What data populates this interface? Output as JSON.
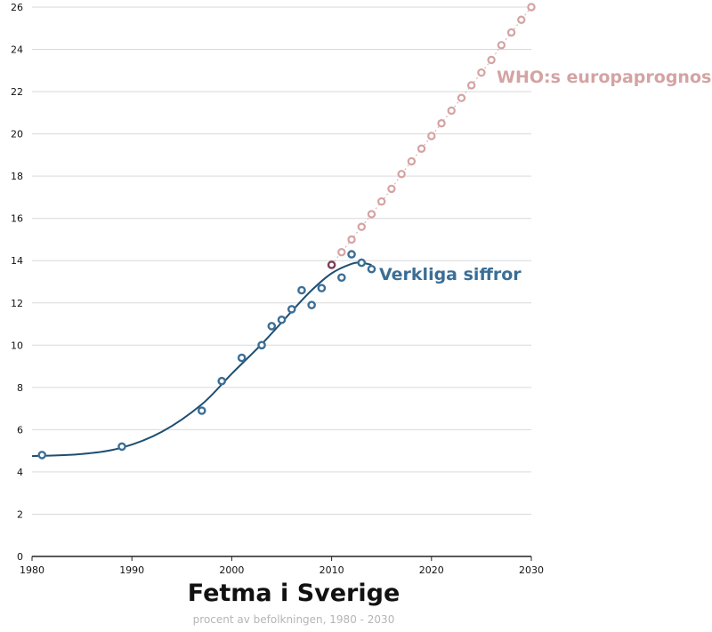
{
  "chart_data": {
    "type": "line",
    "title": "Fetma i Sverige",
    "subtitle": "procent av befolkningen, 1980 - 2030",
    "xlabel": "",
    "ylabel": "",
    "xlim": [
      1980,
      2030
    ],
    "ylim": [
      0,
      26
    ],
    "xticks": [
      1980,
      1990,
      2000,
      2010,
      2020,
      2030
    ],
    "yticks": [
      0,
      2,
      4,
      6,
      8,
      10,
      12,
      14,
      16,
      18,
      20,
      22,
      24,
      26
    ],
    "grid": "horizontal",
    "series": [
      {
        "name": "WHO:s europaprognos",
        "color": "#d4a3a3",
        "style": "markers-with-dotted-line",
        "x": [
          2010,
          2011,
          2012,
          2013,
          2014,
          2015,
          2016,
          2017,
          2018,
          2019,
          2020,
          2021,
          2022,
          2023,
          2024,
          2025,
          2026,
          2027,
          2028,
          2029,
          2030
        ],
        "y": [
          13.8,
          14.4,
          15.0,
          15.6,
          16.2,
          16.8,
          17.4,
          18.1,
          18.7,
          19.3,
          19.9,
          20.5,
          21.1,
          21.7,
          22.3,
          22.9,
          23.5,
          24.2,
          24.8,
          25.4,
          26.0
        ]
      },
      {
        "name": "Verkliga siffror",
        "color": "#3b6e96",
        "trend_color": "#1d4e72",
        "style": "markers-with-smooth-trend",
        "x": [
          1981,
          1989,
          1997,
          1999,
          2001,
          2003,
          2004,
          2005,
          2006,
          2007,
          2008,
          2009,
          2010,
          2011,
          2012,
          2013,
          2014
        ],
        "y": [
          4.8,
          5.2,
          6.9,
          8.3,
          9.4,
          10.0,
          10.9,
          11.2,
          11.7,
          12.6,
          11.9,
          12.7,
          13.8,
          13.2,
          14.3,
          13.9,
          13.6
        ],
        "trend_x": [
          1980,
          1985,
          1989,
          1993,
          1997,
          2000,
          2003,
          2006,
          2008,
          2010,
          2012,
          2013,
          2014
        ],
        "trend_y": [
          4.75,
          4.85,
          5.15,
          5.9,
          7.2,
          8.65,
          10.05,
          11.6,
          12.6,
          13.4,
          13.85,
          13.9,
          13.8
        ]
      }
    ],
    "overlap_point": {
      "x": 2010,
      "y": 13.8,
      "color": "#7a3f55"
    }
  }
}
